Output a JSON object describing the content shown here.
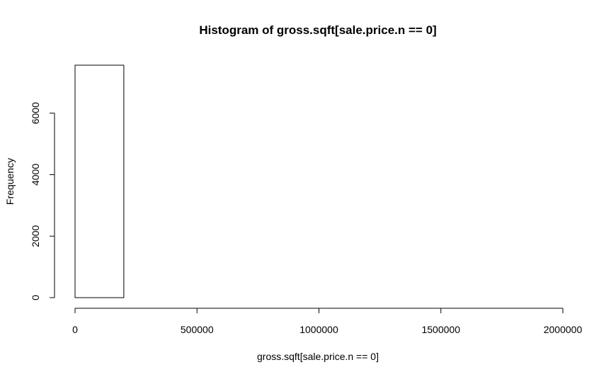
{
  "chart_data": {
    "type": "bar",
    "title": "Histogram of gross.sqft[sale.price.n == 0]",
    "xlabel": "gross.sqft[sale.price.n == 0]",
    "ylabel": "Frequency",
    "bin_edges": [
      0,
      200000,
      400000,
      600000,
      800000,
      1000000,
      1200000,
      1400000,
      1600000,
      1800000,
      2000000
    ],
    "values": [
      7560,
      0,
      0,
      0,
      0,
      0,
      0,
      0,
      0,
      0
    ],
    "xlim": [
      0,
      2000000
    ],
    "ylim": [
      0,
      7560
    ],
    "x_ticks": [
      0,
      500000,
      1000000,
      1500000,
      2000000
    ],
    "x_tick_labels": [
      "0",
      "500000",
      "1000000",
      "1500000",
      "2000000"
    ],
    "y_ticks": [
      0,
      2000,
      4000,
      6000
    ],
    "y_tick_labels": [
      "0",
      "2000",
      "4000",
      "6000"
    ],
    "grid": false
  }
}
